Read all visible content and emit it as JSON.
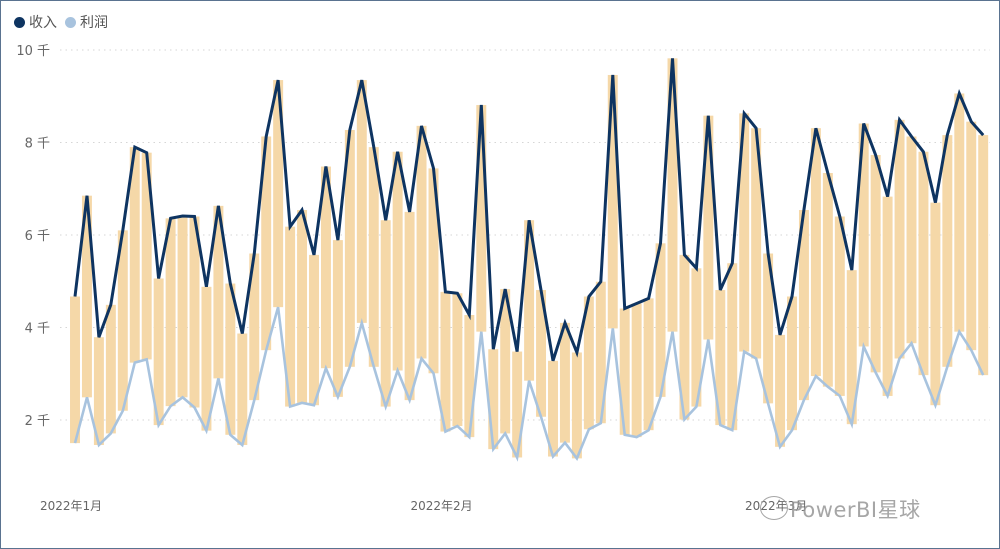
{
  "chart_data": {
    "type": "line",
    "title": "",
    "xlabel": "",
    "ylabel": "",
    "ylim": [
      1.2,
      10
    ],
    "y_unit": "千",
    "y_ticks": [
      "2 千",
      "4 千",
      "6 千",
      "8 千",
      "10 千"
    ],
    "y_tick_values": [
      2,
      4,
      6,
      8,
      10
    ],
    "x_tick_labels": [
      "2022年1月",
      "2022年2月",
      "2022年3月"
    ],
    "x_tick_dates": [
      "2022-01-01",
      "2022-02-01",
      "2022-03-01"
    ],
    "grid": true,
    "legend_position": "top-left",
    "x_start": null,
    "x": [
      "2022-01-01",
      "2022-01-02",
      "2022-01-03",
      "2022-01-04",
      "2022-01-05",
      "2022-01-06",
      "2022-01-07",
      "2022-01-08",
      "2022-01-09",
      "2022-01-10",
      "2022-01-11",
      "2022-01-12",
      "2022-01-13",
      "2022-01-14",
      "2022-01-15",
      "2022-01-16",
      "2022-01-17",
      "2022-01-18",
      "2022-01-19",
      "2022-01-20",
      "2022-01-21",
      "2022-01-22",
      "2022-01-23",
      "2022-01-24",
      "2022-01-25",
      "2022-01-26",
      "2022-01-27",
      "2022-01-28",
      "2022-01-29",
      "2022-01-30",
      "2022-01-31",
      "2022-02-01",
      "2022-02-02",
      "2022-02-03",
      "2022-02-04",
      "2022-02-05",
      "2022-02-06",
      "2022-02-07",
      "2022-02-08",
      "2022-02-09",
      "2022-02-10",
      "2022-02-11",
      "2022-02-12",
      "2022-02-13",
      "2022-02-14",
      "2022-02-15",
      "2022-02-16",
      "2022-02-17",
      "2022-02-18",
      "2022-02-19",
      "2022-02-20",
      "2022-02-21",
      "2022-02-22",
      "2022-02-23",
      "2022-02-24",
      "2022-02-25",
      "2022-02-26",
      "2022-02-27",
      "2022-02-28",
      "2022-03-01",
      "2022-03-02",
      "2022-03-03",
      "2022-03-04",
      "2022-03-05",
      "2022-03-06",
      "2022-03-07",
      "2022-03-08",
      "2022-03-09",
      "2022-03-10",
      "2022-03-11",
      "2022-03-12",
      "2022-03-13",
      "2022-03-14",
      "2022-03-15",
      "2022-03-16",
      "2022-03-17",
      "2022-03-18"
    ],
    "series": [
      {
        "name": "收入",
        "color": "#0e3461",
        "values": [
          4.67,
          6.85,
          3.79,
          4.49,
          6.1,
          7.9,
          7.78,
          5.06,
          6.36,
          6.41,
          6.4,
          4.88,
          6.63,
          4.95,
          3.87,
          5.6,
          8.13,
          9.35,
          6.18,
          6.54,
          5.57,
          7.48,
          5.89,
          8.27,
          9.35,
          7.9,
          6.32,
          7.8,
          6.5,
          8.36,
          7.44,
          4.77,
          4.74,
          4.27,
          8.81,
          3.53,
          4.83,
          3.48,
          6.32,
          4.81,
          3.28,
          4.1,
          3.46,
          4.67,
          4.99,
          9.46,
          4.41,
          4.52,
          4.63,
          5.82,
          9.82,
          5.57,
          5.28,
          8.58,
          4.81,
          5.39,
          8.63,
          8.31,
          5.6,
          3.84,
          4.67,
          6.54,
          8.31,
          7.34,
          6.4,
          5.24,
          8.41,
          7.73,
          6.83,
          8.49,
          8.13,
          7.8,
          6.7,
          8.16,
          9.06,
          8.45,
          8.16
        ]
      },
      {
        "name": "利润",
        "color": "#a8c3de",
        "values": [
          1.5,
          2.49,
          1.46,
          1.71,
          2.2,
          3.24,
          3.31,
          1.89,
          2.3,
          2.49,
          2.27,
          1.77,
          2.9,
          1.68,
          1.46,
          2.43,
          3.51,
          4.44,
          2.29,
          2.37,
          2.32,
          3.12,
          2.5,
          3.15,
          4.1,
          3.15,
          2.29,
          3.07,
          2.43,
          3.33,
          3.01,
          1.75,
          1.87,
          1.63,
          3.91,
          1.37,
          1.71,
          1.19,
          2.85,
          2.07,
          1.21,
          1.51,
          1.17,
          1.8,
          1.93,
          3.98,
          1.68,
          1.63,
          1.78,
          2.5,
          3.91,
          2.01,
          2.29,
          3.74,
          1.89,
          1.78,
          3.48,
          3.33,
          2.36,
          1.42,
          1.78,
          2.43,
          2.95,
          2.72,
          2.52,
          1.91,
          3.59,
          3.03,
          2.52,
          3.33,
          3.66,
          2.97,
          2.32,
          3.15,
          3.91,
          3.51,
          2.97
        ]
      }
    ],
    "range_bar_color": "#f5d8a8"
  },
  "legend": {
    "revenue": "收入",
    "profit": "利润"
  },
  "watermark": "PowerBI星球"
}
